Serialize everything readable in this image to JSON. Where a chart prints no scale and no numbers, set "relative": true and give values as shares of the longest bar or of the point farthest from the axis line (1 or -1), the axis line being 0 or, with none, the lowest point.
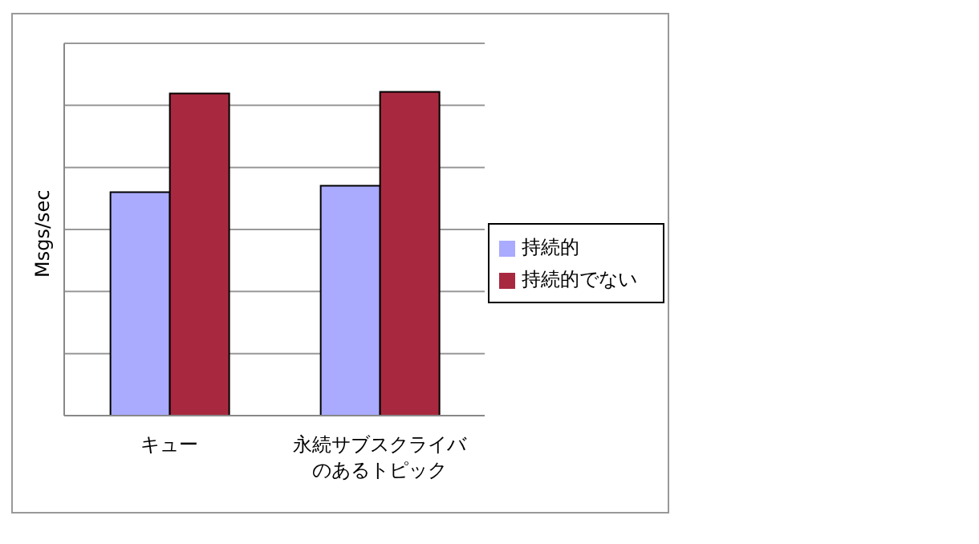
{
  "chart_data": {
    "type": "bar",
    "ylabel": "Msgs/sec",
    "categories": [
      "キュー",
      "永続サブスクライバのあるトピック"
    ],
    "relative": true,
    "grid": "y",
    "legend": "right",
    "series": [
      {
        "name": "持続的",
        "color": "#aaaaff",
        "values": [
          0.69,
          0.71
        ]
      },
      {
        "name": "持続的でない",
        "color": "#a8293f",
        "values": [
          0.995,
          1
        ]
      }
    ]
  }
}
